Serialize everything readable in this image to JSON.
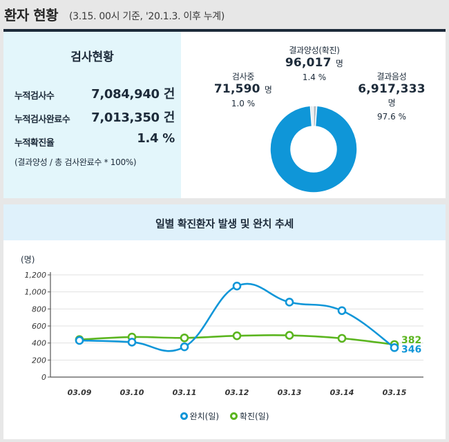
{
  "header": {
    "title": "환자 현황",
    "subtitle": "(3.15. 00시 기준, '20.1.3. 이후 누계)"
  },
  "test_status": {
    "title": "검사현황",
    "rows": [
      {
        "label": "누적검사수",
        "value": "7,084,940 건"
      },
      {
        "label": "누적검사완료수",
        "value": "7,013,350 건"
      },
      {
        "label": "누적확진율",
        "value": "1.4 %"
      }
    ],
    "note": "(결과양성 / 총 검사완료수 * 100%)"
  },
  "donut": {
    "unit": "명",
    "segments": [
      {
        "name": "결과양성(확진)",
        "value": 96017,
        "display": "96,017",
        "pct": "1.4 %",
        "color": "#b9c3cc"
      },
      {
        "name": "검사중",
        "value": 71590,
        "display": "71,590",
        "pct": "1.0 %",
        "color": "#dfe4e8"
      },
      {
        "name": "결과음성",
        "value": 6917333,
        "display": "6,917,333",
        "pct": "97.6 %",
        "color": "#0f96d8"
      }
    ]
  },
  "daily_chart": {
    "title": "일별 확진환자 발생 및 완치 추세",
    "y_unit": "(명)"
  },
  "chart_data": {
    "type": "line",
    "title": "일별 확진환자 발생 및 완치 추세",
    "ylabel": "(명)",
    "categories": [
      "03.09",
      "03.10",
      "03.11",
      "03.12",
      "03.13",
      "03.14",
      "03.15"
    ],
    "ylim": [
      0,
      1200
    ],
    "yticks": [
      "0",
      "200",
      "400",
      "600",
      "800",
      "1,000",
      "1,200"
    ],
    "grid": true,
    "legend": "bottom",
    "series": [
      {
        "name": "완치(일)",
        "color": "#0f96d8",
        "values": [
          430,
          410,
          355,
          1069,
          880,
          780,
          346
        ],
        "labels": [
          "",
          "",
          "",
          "",
          "",
          "",
          "346"
        ]
      },
      {
        "name": "확진(일)",
        "color": "#5bb51f",
        "values": [
          440,
          470,
          460,
          485,
          490,
          455,
          382
        ],
        "labels": [
          "",
          "",
          "",
          "",
          "",
          "",
          "382"
        ]
      }
    ]
  }
}
